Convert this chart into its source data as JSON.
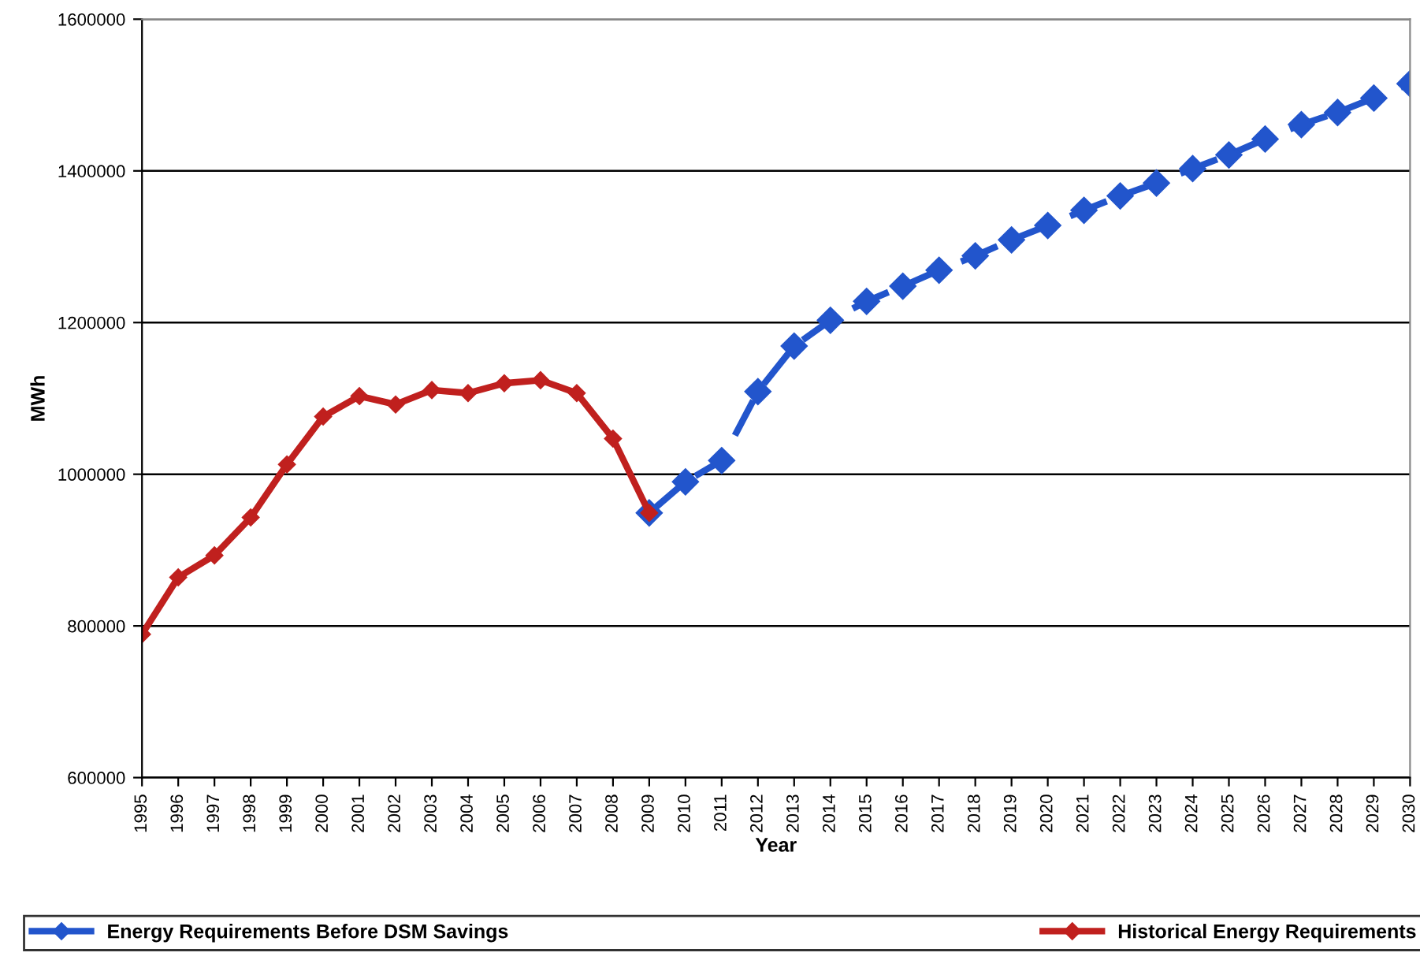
{
  "chart_data": {
    "type": "line",
    "xlabel": "Year",
    "ylabel": "MWh",
    "categories": [
      "1995",
      "1996",
      "1997",
      "1998",
      "1999",
      "2000",
      "2001",
      "2002",
      "2003",
      "2004",
      "2005",
      "2006",
      "2007",
      "2008",
      "2009",
      "2010",
      "2011",
      "2012",
      "2013",
      "2014",
      "2015",
      "2016",
      "2017",
      "2018",
      "2019",
      "2020",
      "2021",
      "2022",
      "2023",
      "2024",
      "2025",
      "2026",
      "2027",
      "2028",
      "2029",
      "2030"
    ],
    "series": [
      {
        "name": "Energy Requirements Before DSM Savings",
        "color": "#2255cc",
        "line_style": "dashed",
        "values": [
          null,
          null,
          null,
          null,
          null,
          null,
          null,
          null,
          null,
          null,
          null,
          null,
          null,
          null,
          949000,
          990000,
          1018000,
          1109000,
          1169000,
          1203000,
          1228000,
          1248000,
          1269000,
          1288000,
          1309000,
          1328000,
          1348000,
          1367000,
          1384000,
          1403000,
          1421000,
          1442000,
          1461000,
          1477000,
          1496000,
          1515000
        ]
      },
      {
        "name": "Historical Energy Requirements",
        "color": "#c0201e",
        "line_style": "solid",
        "values": [
          789000,
          864000,
          893000,
          943000,
          1013000,
          1076000,
          1103000,
          1092000,
          1111000,
          1107000,
          1120000,
          1124000,
          1107000,
          1047000,
          949000,
          null,
          null,
          null,
          null,
          null,
          null,
          null,
          null,
          null,
          null,
          null,
          null,
          null,
          null,
          null,
          null,
          null,
          null,
          null,
          null,
          null
        ]
      }
    ],
    "ylim": [
      600000,
      1600000
    ],
    "yticks": [
      600000,
      800000,
      1000000,
      1200000,
      1400000,
      1600000
    ],
    "grid": "y",
    "legend": "bottom",
    "marker": "diamond"
  }
}
